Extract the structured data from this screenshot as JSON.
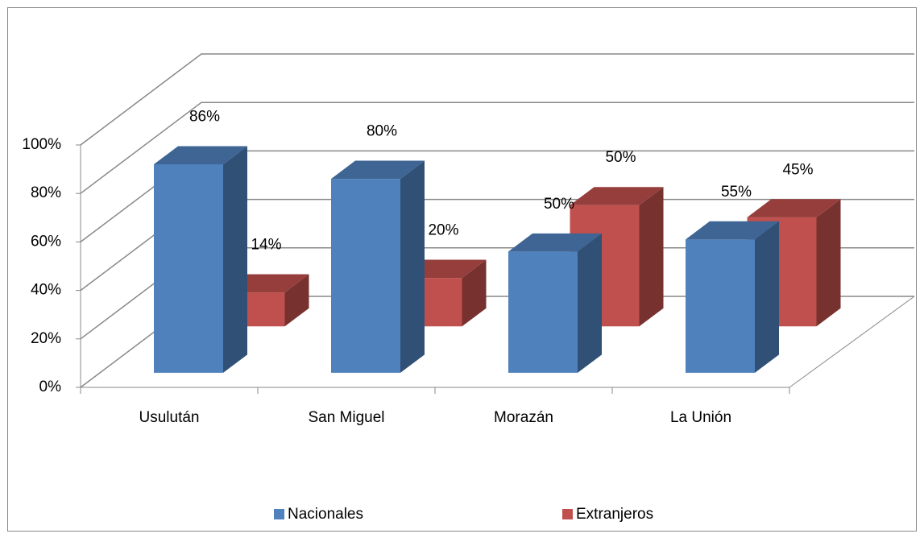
{
  "chart_data": {
    "type": "bar3d",
    "categories": [
      "Usulután",
      "San Miguel",
      "Morazán",
      "La Unión"
    ],
    "series": [
      {
        "name": "Nacionales",
        "color": "#4f81bd",
        "values": [
          86,
          80,
          50,
          55
        ],
        "value_labels": [
          "86%",
          "80%",
          "50%",
          "55%"
        ]
      },
      {
        "name": "Extranjeros",
        "color": "#c0504d",
        "values": [
          14,
          20,
          50,
          45
        ],
        "value_labels": [
          "14%",
          "20%",
          "50%",
          "45%"
        ]
      }
    ],
    "ylim": [
      0,
      100
    ],
    "yticks": [
      {
        "value": 0,
        "label": "0%"
      },
      {
        "value": 20,
        "label": "20%"
      },
      {
        "value": 40,
        "label": "40%"
      },
      {
        "value": 60,
        "label": "60%"
      },
      {
        "value": 80,
        "label": "80%"
      },
      {
        "value": 100,
        "label": "100%"
      }
    ],
    "grid": true,
    "legend": "bottom"
  }
}
